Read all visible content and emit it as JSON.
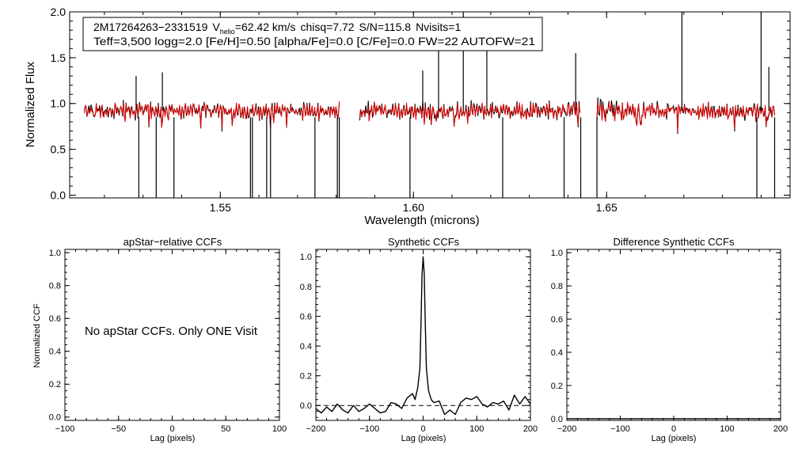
{
  "colors": {
    "observed": "#000000",
    "model": "#e00000",
    "axes": "#000000",
    "background": "#ffffff"
  },
  "chart_data": [
    {
      "id": "spectrum",
      "type": "line",
      "title": "",
      "xlabel": "Wavelength (microns)",
      "ylabel": "Normalized Flux",
      "xlim": [
        1.511,
        1.6975
      ],
      "ylim": [
        -0.03,
        2.0
      ],
      "xticks": [
        1.55,
        1.6,
        1.65
      ],
      "xtick_labels": [
        "1.55",
        "1.60",
        "1.65"
      ],
      "yticks": [
        0.0,
        0.5,
        1.0,
        1.5,
        2.0
      ],
      "ytick_labels": [
        "0.0",
        "0.5",
        "1.0",
        "1.5",
        "2.0"
      ],
      "chips": [
        [
          1.5148,
          1.5809
        ],
        [
          1.5861,
          1.6431
        ],
        [
          1.6475,
          1.6935
        ]
      ],
      "continuum_level": 0.92,
      "series": [
        {
          "name": "observed",
          "color": "#000000"
        },
        {
          "name": "model",
          "color": "#e00000"
        }
      ],
      "absorption_lines": [
        1.5289,
        1.5334,
        1.538,
        1.5578,
        1.5583,
        1.562,
        1.563,
        1.5745,
        1.5803,
        1.5808,
        1.5991,
        1.6231,
        1.639,
        1.6433,
        1.6475,
        1.6889,
        1.6935
      ],
      "emission_spikes": [
        {
          "x": 1.5282,
          "y": 1.3
        },
        {
          "x": 1.535,
          "y": 1.34
        },
        {
          "x": 1.6024,
          "y": 1.36
        },
        {
          "x": 1.6065,
          "y": 1.6
        },
        {
          "x": 1.6129,
          "y": 2.0
        },
        {
          "x": 1.619,
          "y": 1.6
        },
        {
          "x": 1.642,
          "y": 1.55
        },
        {
          "x": 1.6695,
          "y": 2.0
        },
        {
          "x": 1.69,
          "y": 2.0
        },
        {
          "x": 1.692,
          "y": 1.4
        }
      ],
      "legend": {
        "identifier": "2M17264263−2331519",
        "vhelio_prefix": "V",
        "vhelio_sub": "helio",
        "vhelio_value": "=62.42 km/s",
        "chisq": "chisq=7.72",
        "snr": "S/N=115.8",
        "nvisits": "Nvisits=1",
        "params": "Teff=3,500 logg=2.0 [Fe/H]=0.50 [alpha/Fe]=0.0 [C/Fe]=0.0 FW=22 AUTOFW=21"
      }
    },
    {
      "id": "apstar_ccf",
      "type": "line",
      "title": "apStar−relative CCFs",
      "xlabel": "Lag (pixels)",
      "ylabel": "Normalized CCF",
      "xlim": [
        -100,
        100
      ],
      "ylim": [
        -0.02,
        1.02
      ],
      "xticks": [
        -100,
        -50,
        0,
        50,
        100
      ],
      "xtick_labels": [
        "−100",
        "−50",
        "0",
        "50",
        "100"
      ],
      "yticks": [
        0.0,
        0.2,
        0.4,
        0.6,
        0.8,
        1.0
      ],
      "ytick_labels": [
        "0.0",
        "0.2",
        "0.4",
        "0.6",
        "0.8",
        "1.0"
      ],
      "annotation": "No apStar CCFs.  Only ONE Visit",
      "series": []
    },
    {
      "id": "synthetic_ccf",
      "type": "line",
      "title": "Synthetic CCFs",
      "xlabel": "Lag (pixels)",
      "ylabel": "",
      "xlim": [
        -200,
        200
      ],
      "ylim": [
        -0.1,
        1.05
      ],
      "xticks": [
        -200,
        -100,
        0,
        100,
        200
      ],
      "xtick_labels": [
        "−200",
        "−100",
        "0",
        "100",
        "200"
      ],
      "yticks": [
        0.0,
        0.2,
        0.4,
        0.6,
        0.8,
        1.0
      ],
      "ytick_labels": [
        "0.0",
        "0.2",
        "0.4",
        "0.6",
        "0.8",
        "1.0"
      ],
      "baseline": 0.0,
      "series": [
        {
          "name": "ccf",
          "x": [
            -200,
            -190,
            -180,
            -170,
            -160,
            -150,
            -140,
            -130,
            -120,
            -110,
            -100,
            -90,
            -80,
            -70,
            -60,
            -50,
            -40,
            -30,
            -20,
            -15,
            -10,
            -6,
            -4,
            -2,
            0,
            2,
            4,
            6,
            10,
            15,
            20,
            30,
            40,
            50,
            60,
            70,
            80,
            90,
            100,
            110,
            120,
            130,
            140,
            150,
            160,
            170,
            180,
            190,
            200
          ],
          "y": [
            -0.02,
            -0.05,
            -0.01,
            -0.04,
            0.01,
            -0.03,
            -0.05,
            0.0,
            -0.04,
            -0.02,
            0.01,
            -0.02,
            -0.05,
            -0.04,
            0.02,
            0.01,
            -0.02,
            0.05,
            0.08,
            0.04,
            0.12,
            0.25,
            0.55,
            0.88,
            1.0,
            0.88,
            0.55,
            0.25,
            0.1,
            0.04,
            0.02,
            0.03,
            -0.06,
            -0.03,
            -0.06,
            0.02,
            0.05,
            0.04,
            0.06,
            0.01,
            -0.01,
            0.02,
            0.01,
            0.03,
            -0.03,
            0.07,
            0.01,
            0.06,
            0.01
          ]
        }
      ]
    },
    {
      "id": "difference_ccf",
      "type": "line",
      "title": "Difference Synthetic CCFs",
      "xlabel": "Lag (pixels)",
      "ylabel": "",
      "xlim": [
        -200,
        200
      ],
      "ylim": [
        -0.01,
        1.02
      ],
      "xticks": [
        -200,
        -100,
        0,
        100,
        200
      ],
      "xtick_labels": [
        "−200",
        "−100",
        "0",
        "100",
        "200"
      ],
      "yticks": [
        0.0,
        0.2,
        0.4,
        0.6,
        0.8,
        1.0
      ],
      "ytick_labels": [
        "0.0",
        "0.2",
        "0.4",
        "0.6",
        "0.8",
        "1.0"
      ],
      "series": [
        {
          "name": "difference",
          "x": [
            -200,
            200
          ],
          "y": [
            0.0,
            0.0
          ]
        }
      ]
    }
  ]
}
